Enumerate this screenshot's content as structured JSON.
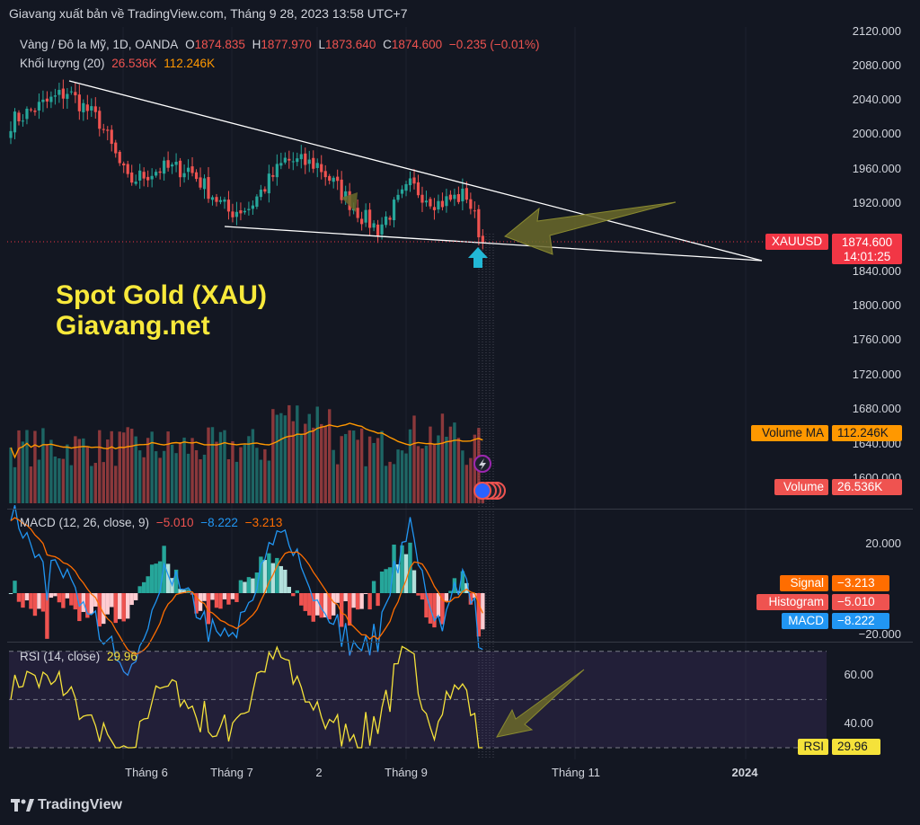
{
  "header": "Giavang xuất bản về TradingView.com, Tháng 9 28, 2023 13:58 UTC+7",
  "footer": {
    "logo_text": "TradingView"
  },
  "watermark": {
    "line1": "Spot Gold (XAU)",
    "line2": "Giavang.net"
  },
  "symbol_legend": {
    "title": "Vàng / Đô la Mỹ, 1D, OANDA",
    "o_label": "O",
    "o": "1874.835",
    "h_label": "H",
    "h": "1877.970",
    "l_label": "L",
    "l": "1873.640",
    "c_label": "C",
    "c": "1874.600",
    "change": "−0.235 (−0.01%)"
  },
  "volume_legend": {
    "title": "Khối lượng (20)",
    "v1": "26.536K",
    "v2": "112.246K"
  },
  "macd_legend": {
    "title": "MACD (12, 26, close, 9)",
    "v1": "−5.010",
    "v2": "−8.222",
    "v3": "−3.213"
  },
  "rsi_legend": {
    "title": "RSI (14, close)",
    "v": "29.96"
  },
  "price_axis": {
    "ticks": [
      "2120.000",
      "2080.000",
      "2040.000",
      "2000.000",
      "1960.000",
      "1920.000",
      "1840.000",
      "1800.000",
      "1760.000",
      "1720.000",
      "1680.000",
      "1640.000",
      "1600.000"
    ]
  },
  "macd_axis": {
    "ticks": [
      "20.000",
      "−20.000"
    ]
  },
  "rsi_axis": {
    "ticks": [
      "60.00",
      "40.00"
    ]
  },
  "time_axis": {
    "ticks": [
      "Tháng 6",
      "Tháng 7",
      "2",
      "Tháng 9",
      "Tháng 11",
      "2024"
    ]
  },
  "labels": {
    "price_name": "XAUUSD",
    "price_value": "1874.600",
    "price_countdown": "14:01:25",
    "volma_name": "Volume MA",
    "volma_value": "112.246K",
    "vol_name": "Volume",
    "vol_value": "26.536K",
    "signal_name": "Signal",
    "signal_value": "−3.213",
    "hist_name": "Histogram",
    "hist_value": "−5.010",
    "macd_name": "MACD",
    "macd_value": "−8.222",
    "rsi_name": "RSI",
    "rsi_value": "29.96"
  },
  "colors": {
    "up": "#26a69a",
    "down": "#ef5350",
    "volma": "#ff9800",
    "macd": "#2196f3",
    "signal": "#ff6d00",
    "rsi": "#f5e23a",
    "arrow": "#6b6a2a",
    "label_bg_price": "#f23645"
  },
  "chart_data": [
    {
      "type": "candlestick",
      "title": "Vàng / Đô la Mỹ, 1D, OANDA",
      "ylim": [
        1580,
        2125
      ],
      "last_close": 1874.6,
      "anchor_points": [
        {
          "x": "2023-04-13",
          "close": 2015
        },
        {
          "x": "2023-05-04",
          "close": 2050
        },
        {
          "x": "2023-05-15",
          "close": 2015
        },
        {
          "x": "2023-05-25",
          "close": 1945
        },
        {
          "x": "2023-06-05",
          "close": 1960
        },
        {
          "x": "2023-06-15",
          "close": 1960
        },
        {
          "x": "2023-06-29",
          "close": 1910
        },
        {
          "x": "2023-07-06",
          "close": 1915
        },
        {
          "x": "2023-07-20",
          "close": 1970
        },
        {
          "x": "2023-07-31",
          "close": 1965
        },
        {
          "x": "2023-08-15",
          "close": 1905
        },
        {
          "x": "2023-08-21",
          "close": 1890
        },
        {
          "x": "2023-09-01",
          "close": 1940
        },
        {
          "x": "2023-09-11",
          "close": 1920
        },
        {
          "x": "2023-09-20",
          "close": 1930
        },
        {
          "x": "2023-09-27",
          "close": 1875
        }
      ]
    },
    {
      "type": "bar",
      "title": "Khối lượng (20)",
      "last_volume": "26.536K",
      "volume_ma": "112.246K"
    },
    {
      "type": "line",
      "title": "MACD (12, 26, close, 9)",
      "series": [
        {
          "name": "MACD",
          "last": -8.222
        },
        {
          "name": "Signal",
          "last": -3.213
        },
        {
          "name": "Histogram",
          "last": -5.01
        }
      ]
    },
    {
      "type": "line",
      "title": "RSI (14, close)",
      "levels": [
        70,
        50,
        30
      ],
      "last": 29.96
    }
  ]
}
